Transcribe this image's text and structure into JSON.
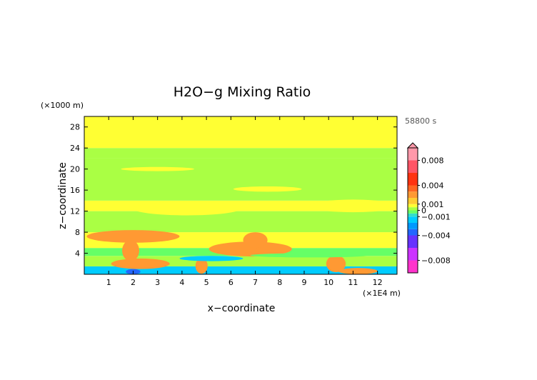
{
  "chart_data": {
    "type": "heatmap",
    "title": "H2O−g Mixing Ratio",
    "xlabel": "x−coordinate",
    "ylabel": "z−coordinate",
    "x_unit": "(×1E4 m)",
    "y_unit": "(×1000 m)",
    "time_label": "58800 s",
    "xlim": [
      0,
      12.8
    ],
    "ylim": [
      0,
      30
    ],
    "x_ticks": [
      1,
      2,
      3,
      4,
      5,
      6,
      7,
      8,
      9,
      10,
      11,
      12
    ],
    "y_ticks": [
      4,
      8,
      12,
      16,
      20,
      24,
      28
    ],
    "colorbar": {
      "labels": [
        "0.008",
        "0.004",
        "0.001",
        "0",
        "−0.001",
        "−0.004",
        "−0.008"
      ],
      "label_values": [
        0.008,
        0.004,
        0.001,
        0,
        -0.001,
        -0.004,
        -0.008
      ],
      "range": [
        -0.01,
        0.01
      ],
      "extend": "max",
      "bins": [
        {
          "lo": -0.01,
          "hi": -0.008,
          "color": "#ff33cc"
        },
        {
          "lo": -0.008,
          "hi": -0.006,
          "color": "#cc33ff"
        },
        {
          "lo": -0.006,
          "hi": -0.004,
          "color": "#6633ff"
        },
        {
          "lo": -0.004,
          "hi": -0.003,
          "color": "#2266ff"
        },
        {
          "lo": -0.003,
          "hi": -0.002,
          "color": "#0099ff"
        },
        {
          "lo": -0.002,
          "hi": -0.001,
          "color": "#00ccff"
        },
        {
          "lo": -0.001,
          "hi": -0.0005,
          "color": "#33ddcc"
        },
        {
          "lo": -0.0005,
          "hi": 0,
          "color": "#66ff66"
        },
        {
          "lo": 0,
          "hi": 0.0005,
          "color": "#aaff44"
        },
        {
          "lo": 0.0005,
          "hi": 0.001,
          "color": "#ffff33"
        },
        {
          "lo": 0.001,
          "hi": 0.002,
          "color": "#ffcc33"
        },
        {
          "lo": 0.002,
          "hi": 0.003,
          "color": "#ff9933"
        },
        {
          "lo": 0.003,
          "hi": 0.004,
          "color": "#ff6622"
        },
        {
          "lo": 0.004,
          "hi": 0.006,
          "color": "#ff3311"
        },
        {
          "lo": 0.006,
          "hi": 0.008,
          "color": "#ff5566"
        },
        {
          "lo": 0.008,
          "hi": 0.01,
          "color": "#ff99aa"
        }
      ]
    },
    "field_bands": [
      {
        "z": [
          0,
          1.5
        ],
        "value": -0.002
      },
      {
        "z": [
          1.5,
          3.5
        ],
        "value": 0.0003
      },
      {
        "z": [
          3.5,
          5
        ],
        "value": -0.0003
      },
      {
        "z": [
          5,
          8
        ],
        "value": 0.0007
      },
      {
        "z": [
          8,
          12
        ],
        "value": 0.0003
      },
      {
        "z": [
          12,
          14
        ],
        "value": 0.0007
      },
      {
        "z": [
          14,
          22
        ],
        "value": 0.0003
      },
      {
        "z": [
          22,
          24
        ],
        "value": 0.0003
      },
      {
        "z": [
          24,
          30
        ],
        "value": 0.0008
      }
    ],
    "field_features": [
      {
        "x": 2.0,
        "z": 7.2,
        "rx": 1.9,
        "rz": 1.2,
        "value": 0.0025
      },
      {
        "x": 1.9,
        "z": 4.5,
        "rx": 0.35,
        "rz": 2.0,
        "value": 0.0025
      },
      {
        "x": 2.3,
        "z": 2.0,
        "rx": 1.2,
        "rz": 1.0,
        "value": 0.0025
      },
      {
        "x": 6.8,
        "z": 4.8,
        "rx": 1.7,
        "rz": 1.4,
        "value": 0.0025
      },
      {
        "x": 7.0,
        "z": 6.5,
        "rx": 0.5,
        "rz": 1.5,
        "value": 0.0025
      },
      {
        "x": 4.8,
        "z": 1.6,
        "rx": 0.25,
        "rz": 1.5,
        "value": 0.0025
      },
      {
        "x": 10.3,
        "z": 2.0,
        "rx": 0.4,
        "rz": 1.6,
        "value": 0.0025
      },
      {
        "x": 11.2,
        "z": 0.6,
        "rx": 0.8,
        "rz": 0.6,
        "value": 0.0025
      },
      {
        "x": 2.0,
        "z": 0.5,
        "rx": 0.3,
        "rz": 0.5,
        "value": -0.004
      },
      {
        "x": 5.2,
        "z": 3.0,
        "rx": 1.3,
        "rz": 0.5,
        "value": -0.002
      },
      {
        "x": 9.2,
        "z": 3.6,
        "rx": 2.4,
        "rz": 0.4,
        "value": -0.0003
      },
      {
        "x": 12.2,
        "z": 4.3,
        "rx": 0.6,
        "rz": 0.6,
        "value": -0.0003
      },
      {
        "x": 4.2,
        "z": 12.5,
        "rx": 2.2,
        "rz": 1.3,
        "value": 0.0008
      },
      {
        "x": 11.0,
        "z": 13.0,
        "rx": 1.8,
        "rz": 1.2,
        "value": 0.0008
      },
      {
        "x": 7.5,
        "z": 16.2,
        "rx": 1.4,
        "rz": 0.5,
        "value": 0.0008
      },
      {
        "x": 3.0,
        "z": 20.0,
        "rx": 1.5,
        "rz": 0.4,
        "value": 0.0008
      }
    ]
  }
}
